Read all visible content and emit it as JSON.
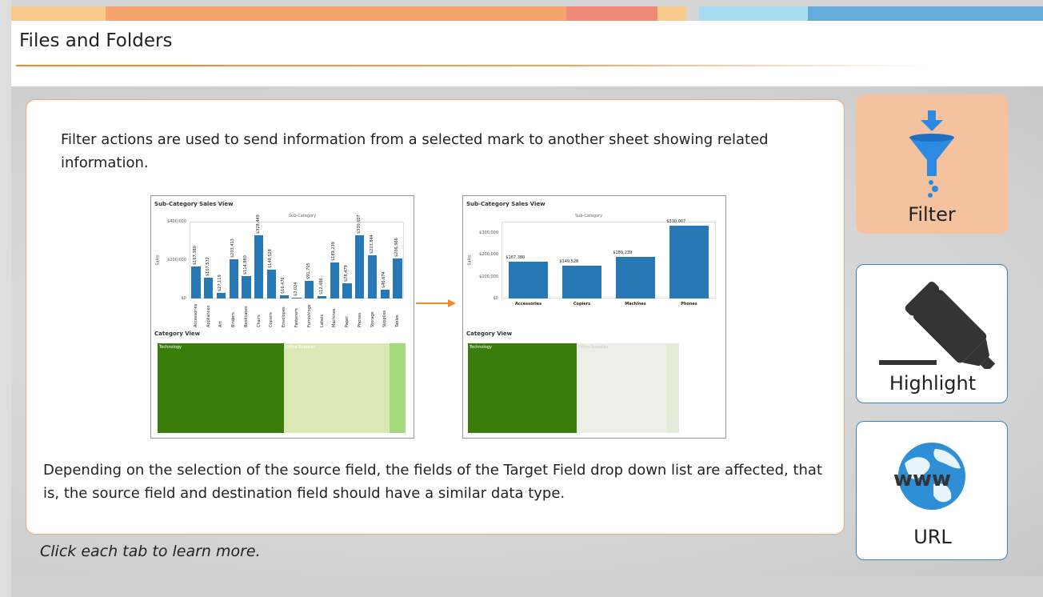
{
  "page": {
    "title": "Files and Folders",
    "hint": "Click each tab to learn more."
  },
  "colors": {
    "accent_orange": "#f08a2a",
    "accent_blue": "#3a84c2",
    "filter_tab_bg": "#f5c2a0",
    "bar_blue": "#2878b6",
    "tech_green": "#3a7d0a",
    "office_green": "#d9e8b5"
  },
  "content": {
    "intro": "Filter actions are used to send information from a selected mark to another sheet showing related information.",
    "outro": "Depending on the selection of the source field, the fields of the Target Field drop down list are affected, that is, the source field and destination field should have a similar data type."
  },
  "tabs": [
    {
      "label": "Filter",
      "icon": "funnel-icon",
      "selected": true
    },
    {
      "label": "Highlight",
      "icon": "marker-icon",
      "selected": false
    },
    {
      "label": "URL",
      "icon": "globe-www-icon",
      "selected": false
    }
  ],
  "chart_data": [
    {
      "type": "bar",
      "title": "Sub-Category Sales View",
      "subtitle": "Sub-Category",
      "ylabel": "Sales",
      "yticks": [
        "$400,000",
        "$200,000",
        "$0"
      ],
      "ylim": [
        0,
        400000
      ],
      "categories": [
        "Accessories",
        "Appliances",
        "Art",
        "Binders",
        "Bookcases",
        "Chairs",
        "Copiers",
        "Envelopes",
        "Fasteners",
        "Furnishings",
        "Labels",
        "Machines",
        "Paper",
        "Phones",
        "Storage",
        "Supplies",
        "Tables"
      ],
      "values": [
        167380,
        107532,
        27119,
        203413,
        114880,
        328449,
        149528,
        16476,
        3024,
        91705,
        12486,
        189239,
        78479,
        330007,
        223844,
        46674,
        206966
      ],
      "value_labels": [
        "$167,380",
        "$107,532",
        "$27,119",
        "$203,413",
        "$114,880",
        "$328,449",
        "$149,528",
        "$16,476",
        "$3,024",
        "$91,705",
        "$12,486",
        "$189,239",
        "$78,479",
        "$330,007",
        "$223,844",
        "$46,674",
        "$206,966"
      ]
    },
    {
      "type": "bar",
      "title": "Sub-Category Sales View",
      "subtitle": "Sub-Category",
      "ylabel": "Sales",
      "yticks": [
        "$300,000",
        "$200,000",
        "$100,000",
        "$0"
      ],
      "ylim": [
        0,
        350000
      ],
      "categories": [
        "Accessories",
        "Copiers",
        "Machines",
        "Phones"
      ],
      "values": [
        167380,
        149528,
        189239,
        330007
      ],
      "value_labels": [
        "$167,380",
        "$149,528",
        "$189,239",
        "$330,007"
      ]
    }
  ],
  "category_views": [
    {
      "title": "Category View",
      "labels": [
        "Technology",
        "Office Supplies"
      ]
    },
    {
      "title": "Category View",
      "labels": [
        "Technology",
        "Office Supplies"
      ]
    }
  ]
}
